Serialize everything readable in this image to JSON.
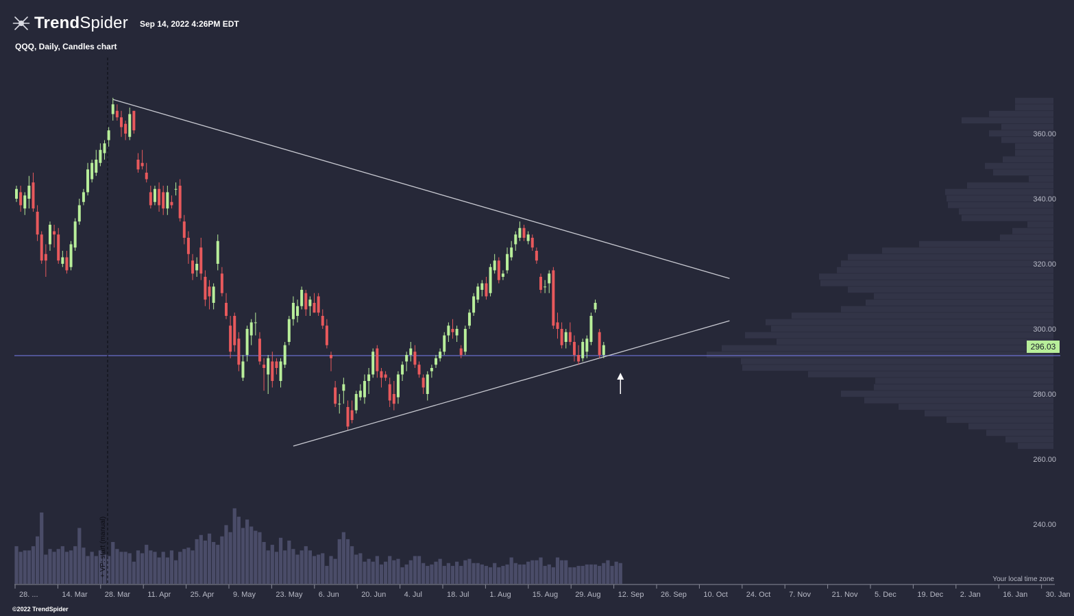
{
  "header": {
    "brand_bold": "Trend",
    "brand_light": "Spider",
    "timestamp": "Sep 14, 2022 4:26PM EDT",
    "subtitle": "QQQ, Daily, Candles chart"
  },
  "footer": {
    "copyright": "©2022 TrendSpider",
    "timezone_note": "Your local time zone"
  },
  "colors": {
    "background": "#262838",
    "up_candle": "#b8ee9a",
    "down_candle": "#e8595c",
    "volume": "#4a4c68",
    "volume_profile": "#323447",
    "trendline": "#c9cad2",
    "horizontal_line": "#7b7ef0",
    "axis_text": "#b8bac6"
  },
  "chart_data": {
    "type": "candlestick",
    "symbol": "QQQ",
    "interval": "Daily",
    "ylim": [
      228,
      376
    ],
    "y_ticks": [
      "360.00",
      "340.00",
      "320.00",
      "300.00",
      "280.00",
      "260.00",
      "240.00"
    ],
    "x_ticks": [
      "28. ...",
      "14. Mar",
      "28. Mar",
      "11. Apr",
      "25. Apr",
      "9. May",
      "23. May",
      "6. Jun",
      "20. Jun",
      "4. Jul",
      "18. Jul",
      "1. Aug",
      "15. Aug",
      "29. Aug",
      "12. Sep",
      "26. Sep",
      "10. Oct",
      "24. Oct",
      "7. Nov",
      "21. Nov",
      "5. Dec",
      "19. Dec",
      "2. Jan",
      "16. Jan",
      "30. Jan"
    ],
    "last_price": "296.03",
    "vertical_marker_label": "+ VP: start (manual)",
    "horizontal_level": 291.8,
    "candles": [
      {
        "o": 340,
        "h": 344,
        "l": 339,
        "c": 343
      },
      {
        "o": 342,
        "h": 344,
        "l": 336,
        "c": 338
      },
      {
        "o": 337,
        "h": 342,
        "l": 335,
        "c": 341
      },
      {
        "o": 340,
        "h": 347,
        "l": 337,
        "c": 344
      },
      {
        "o": 345,
        "h": 348,
        "l": 336,
        "c": 337
      },
      {
        "o": 336,
        "h": 338,
        "l": 327,
        "c": 329
      },
      {
        "o": 329,
        "h": 330,
        "l": 320,
        "c": 321
      },
      {
        "o": 323,
        "h": 326,
        "l": 316,
        "c": 321
      },
      {
        "o": 326,
        "h": 333,
        "l": 324,
        "c": 332
      },
      {
        "o": 330,
        "h": 332,
        "l": 325,
        "c": 329
      },
      {
        "o": 329,
        "h": 331,
        "l": 320,
        "c": 321
      },
      {
        "o": 320,
        "h": 324,
        "l": 319,
        "c": 322
      },
      {
        "o": 322,
        "h": 324,
        "l": 317,
        "c": 318
      },
      {
        "o": 319,
        "h": 327,
        "l": 318,
        "c": 326
      },
      {
        "o": 325,
        "h": 334,
        "l": 324,
        "c": 333
      },
      {
        "o": 333,
        "h": 340,
        "l": 332,
        "c": 338
      },
      {
        "o": 339,
        "h": 343,
        "l": 338,
        "c": 342
      },
      {
        "o": 342,
        "h": 351,
        "l": 341,
        "c": 349
      },
      {
        "o": 346,
        "h": 352,
        "l": 345,
        "c": 351
      },
      {
        "o": 348,
        "h": 355,
        "l": 347,
        "c": 352
      },
      {
        "o": 351,
        "h": 357,
        "l": 350,
        "c": 355
      },
      {
        "o": 354,
        "h": 358,
        "l": 352,
        "c": 357
      },
      {
        "o": 358,
        "h": 362,
        "l": 356,
        "c": 361
      },
      {
        "o": 366,
        "h": 371,
        "l": 364,
        "c": 369
      },
      {
        "o": 367,
        "h": 369,
        "l": 364,
        "c": 365
      },
      {
        "o": 365,
        "h": 367,
        "l": 359,
        "c": 362
      },
      {
        "o": 363,
        "h": 364,
        "l": 358,
        "c": 360
      },
      {
        "o": 359,
        "h": 368,
        "l": 358,
        "c": 366
      },
      {
        "o": 367,
        "h": 367,
        "l": 360,
        "c": 361
      },
      {
        "o": 352,
        "h": 354,
        "l": 348,
        "c": 349
      },
      {
        "o": 351,
        "h": 355,
        "l": 349,
        "c": 350
      },
      {
        "o": 348,
        "h": 351,
        "l": 345,
        "c": 346
      },
      {
        "o": 342,
        "h": 344,
        "l": 337,
        "c": 338
      },
      {
        "o": 339,
        "h": 344,
        "l": 338,
        "c": 343
      },
      {
        "o": 343,
        "h": 345,
        "l": 336,
        "c": 338
      },
      {
        "o": 342,
        "h": 344,
        "l": 335,
        "c": 337
      },
      {
        "o": 337,
        "h": 344,
        "l": 335,
        "c": 342
      },
      {
        "o": 339,
        "h": 341,
        "l": 337,
        "c": 338
      },
      {
        "o": 343,
        "h": 345,
        "l": 341,
        "c": 343
      },
      {
        "o": 344,
        "h": 346,
        "l": 333,
        "c": 334
      },
      {
        "o": 333,
        "h": 335,
        "l": 326,
        "c": 328
      },
      {
        "o": 328,
        "h": 330,
        "l": 320,
        "c": 323
      },
      {
        "o": 321,
        "h": 323,
        "l": 315,
        "c": 317
      },
      {
        "o": 318,
        "h": 322,
        "l": 316,
        "c": 320
      },
      {
        "o": 325,
        "h": 328,
        "l": 315,
        "c": 317
      },
      {
        "o": 316,
        "h": 318,
        "l": 307,
        "c": 309
      },
      {
        "o": 313,
        "h": 315,
        "l": 306,
        "c": 310
      },
      {
        "o": 308,
        "h": 314,
        "l": 306,
        "c": 313
      },
      {
        "o": 320,
        "h": 329,
        "l": 318,
        "c": 327
      },
      {
        "o": 317,
        "h": 319,
        "l": 310,
        "c": 311
      },
      {
        "o": 308,
        "h": 311,
        "l": 303,
        "c": 304
      },
      {
        "o": 301,
        "h": 304,
        "l": 291,
        "c": 293
      },
      {
        "o": 304,
        "h": 305,
        "l": 293,
        "c": 295
      },
      {
        "o": 297,
        "h": 299,
        "l": 287,
        "c": 289
      },
      {
        "o": 285,
        "h": 292,
        "l": 284,
        "c": 290
      },
      {
        "o": 292,
        "h": 301,
        "l": 290,
        "c": 300
      },
      {
        "o": 298,
        "h": 303,
        "l": 295,
        "c": 302
      },
      {
        "o": 302,
        "h": 305,
        "l": 298,
        "c": 302
      },
      {
        "o": 297,
        "h": 299,
        "l": 289,
        "c": 290
      },
      {
        "o": 289,
        "h": 291,
        "l": 281,
        "c": 288
      },
      {
        "o": 286,
        "h": 292,
        "l": 280,
        "c": 291
      },
      {
        "o": 290,
        "h": 293,
        "l": 282,
        "c": 284
      },
      {
        "o": 290,
        "h": 291,
        "l": 286,
        "c": 288
      },
      {
        "o": 284,
        "h": 291,
        "l": 282,
        "c": 290
      },
      {
        "o": 289,
        "h": 296,
        "l": 288,
        "c": 295
      },
      {
        "o": 296,
        "h": 304,
        "l": 295,
        "c": 303
      },
      {
        "o": 303,
        "h": 310,
        "l": 301,
        "c": 308
      },
      {
        "o": 304,
        "h": 309,
        "l": 302,
        "c": 307
      },
      {
        "o": 307,
        "h": 313,
        "l": 306,
        "c": 312
      },
      {
        "o": 311,
        "h": 312,
        "l": 304,
        "c": 306
      },
      {
        "o": 307,
        "h": 310,
        "l": 304,
        "c": 309
      },
      {
        "o": 308,
        "h": 311,
        "l": 305,
        "c": 305
      },
      {
        "o": 310,
        "h": 311,
        "l": 304,
        "c": 305
      },
      {
        "o": 304,
        "h": 306,
        "l": 300,
        "c": 301
      },
      {
        "o": 301,
        "h": 303,
        "l": 294,
        "c": 295
      },
      {
        "o": 292,
        "h": 293,
        "l": 287,
        "c": 291
      },
      {
        "o": 282,
        "h": 284,
        "l": 276,
        "c": 277
      },
      {
        "o": 277,
        "h": 280,
        "l": 274,
        "c": 277
      },
      {
        "o": 281,
        "h": 285,
        "l": 277,
        "c": 283
      },
      {
        "o": 276,
        "h": 278,
        "l": 269,
        "c": 270
      },
      {
        "o": 275,
        "h": 278,
        "l": 271,
        "c": 272
      },
      {
        "o": 275,
        "h": 281,
        "l": 274,
        "c": 280
      },
      {
        "o": 279,
        "h": 283,
        "l": 278,
        "c": 281
      },
      {
        "o": 279,
        "h": 286,
        "l": 277,
        "c": 284
      },
      {
        "o": 284,
        "h": 288,
        "l": 280,
        "c": 286
      },
      {
        "o": 286,
        "h": 294,
        "l": 285,
        "c": 293
      },
      {
        "o": 294,
        "h": 295,
        "l": 285,
        "c": 287
      },
      {
        "o": 287,
        "h": 288,
        "l": 282,
        "c": 285
      },
      {
        "o": 286,
        "h": 287,
        "l": 284,
        "c": 285
      },
      {
        "o": 283,
        "h": 285,
        "l": 276,
        "c": 278
      },
      {
        "o": 280,
        "h": 284,
        "l": 275,
        "c": 277
      },
      {
        "o": 279,
        "h": 287,
        "l": 277,
        "c": 286
      },
      {
        "o": 286,
        "h": 290,
        "l": 284,
        "c": 289
      },
      {
        "o": 290,
        "h": 293,
        "l": 287,
        "c": 292
      },
      {
        "o": 292,
        "h": 296,
        "l": 290,
        "c": 294
      },
      {
        "o": 293,
        "h": 295,
        "l": 288,
        "c": 289
      },
      {
        "o": 289,
        "h": 290,
        "l": 285,
        "c": 286
      },
      {
        "o": 285,
        "h": 286,
        "l": 280,
        "c": 282
      },
      {
        "o": 280,
        "h": 287,
        "l": 278,
        "c": 286
      },
      {
        "o": 287,
        "h": 289,
        "l": 285,
        "c": 288
      },
      {
        "o": 289,
        "h": 292,
        "l": 288,
        "c": 291
      },
      {
        "o": 291,
        "h": 294,
        "l": 290,
        "c": 293
      },
      {
        "o": 293,
        "h": 299,
        "l": 292,
        "c": 298
      },
      {
        "o": 298,
        "h": 302,
        "l": 296,
        "c": 301
      },
      {
        "o": 300,
        "h": 303,
        "l": 297,
        "c": 299
      },
      {
        "o": 298,
        "h": 301,
        "l": 296,
        "c": 300
      },
      {
        "o": 294,
        "h": 295,
        "l": 291,
        "c": 292
      },
      {
        "o": 293,
        "h": 301,
        "l": 292,
        "c": 300
      },
      {
        "o": 301,
        "h": 306,
        "l": 300,
        "c": 305
      },
      {
        "o": 305,
        "h": 311,
        "l": 304,
        "c": 310
      },
      {
        "o": 309,
        "h": 314,
        "l": 308,
        "c": 313
      },
      {
        "o": 312,
        "h": 315,
        "l": 310,
        "c": 314
      },
      {
        "o": 314,
        "h": 316,
        "l": 309,
        "c": 310
      },
      {
        "o": 311,
        "h": 320,
        "l": 310,
        "c": 319
      },
      {
        "o": 318,
        "h": 323,
        "l": 317,
        "c": 321
      },
      {
        "o": 321,
        "h": 322,
        "l": 314,
        "c": 315
      },
      {
        "o": 316,
        "h": 318,
        "l": 315,
        "c": 317
      },
      {
        "o": 318,
        "h": 325,
        "l": 317,
        "c": 323
      },
      {
        "o": 322,
        "h": 327,
        "l": 321,
        "c": 325
      },
      {
        "o": 326,
        "h": 330,
        "l": 324,
        "c": 329
      },
      {
        "o": 328,
        "h": 333,
        "l": 327,
        "c": 331
      },
      {
        "o": 331,
        "h": 332,
        "l": 327,
        "c": 328
      },
      {
        "o": 327,
        "h": 330,
        "l": 326,
        "c": 329
      },
      {
        "o": 328,
        "h": 329,
        "l": 324,
        "c": 325
      },
      {
        "o": 324,
        "h": 325,
        "l": 320,
        "c": 321
      },
      {
        "o": 316,
        "h": 317,
        "l": 311,
        "c": 312
      },
      {
        "o": 313,
        "h": 315,
        "l": 311,
        "c": 313
      },
      {
        "o": 314,
        "h": 318,
        "l": 311,
        "c": 317
      },
      {
        "o": 318,
        "h": 319,
        "l": 300,
        "c": 301
      },
      {
        "o": 302,
        "h": 305,
        "l": 297,
        "c": 300
      },
      {
        "o": 300,
        "h": 302,
        "l": 294,
        "c": 295
      },
      {
        "o": 296,
        "h": 300,
        "l": 294,
        "c": 299
      },
      {
        "o": 299,
        "h": 302,
        "l": 295,
        "c": 296
      },
      {
        "o": 296,
        "h": 298,
        "l": 290,
        "c": 292
      },
      {
        "o": 292,
        "h": 295,
        "l": 289,
        "c": 290
      },
      {
        "o": 291,
        "h": 297,
        "l": 290,
        "c": 296
      },
      {
        "o": 293,
        "h": 298,
        "l": 291,
        "c": 297
      },
      {
        "o": 296,
        "h": 305,
        "l": 295,
        "c": 304
      },
      {
        "o": 306,
        "h": 309,
        "l": 305,
        "c": 308
      },
      {
        "o": 299,
        "h": 300,
        "l": 291,
        "c": 292
      },
      {
        "o": 292,
        "h": 296,
        "l": 291,
        "c": 295
      }
    ],
    "volume": [
      57,
      53,
      54,
      54,
      57,
      64,
      81,
      51,
      55,
      53,
      55,
      57,
      53,
      54,
      57,
      70,
      56,
      50,
      53,
      50,
      54,
      51,
      50,
      60,
      55,
      53,
      53,
      52,
      46,
      54,
      52,
      58,
      54,
      53,
      49,
      53,
      49,
      54,
      47,
      53,
      55,
      56,
      54,
      62,
      65,
      61,
      66,
      60,
      58,
      64,
      72,
      67,
      84,
      78,
      70,
      76,
      71,
      68,
      67,
      60,
      54,
      58,
      53,
      63,
      54,
      61,
      55,
      51,
      54,
      57,
      54,
      50,
      51,
      52,
      43,
      50,
      48,
      62,
      67,
      62,
      57,
      51,
      52,
      46,
      48,
      46,
      50,
      44,
      46,
      50,
      47,
      48,
      42,
      44,
      47,
      50,
      50,
      45,
      43,
      44,
      46,
      48,
      43,
      45,
      43,
      46,
      43,
      47,
      48,
      45,
      45,
      44,
      43,
      42,
      45,
      42,
      43,
      44,
      49,
      45,
      44,
      44,
      46,
      47,
      47,
      49,
      43,
      44,
      42,
      49,
      47,
      47,
      42,
      42,
      43,
      43,
      44,
      44,
      44,
      43,
      45,
      47,
      43,
      46,
      45
    ],
    "volume_profile": [
      {
        "p": 370,
        "w": 56
      },
      {
        "p": 368,
        "w": 56
      },
      {
        "p": 366,
        "w": 94
      },
      {
        "p": 364,
        "w": 134
      },
      {
        "p": 362,
        "w": 76
      },
      {
        "p": 360,
        "w": 94
      },
      {
        "p": 358,
        "w": 76
      },
      {
        "p": 356,
        "w": 56
      },
      {
        "p": 354,
        "w": 56
      },
      {
        "p": 352,
        "w": 74
      },
      {
        "p": 350,
        "w": 100
      },
      {
        "p": 348,
        "w": 88
      },
      {
        "p": 346,
        "w": 36
      },
      {
        "p": 344,
        "w": 126
      },
      {
        "p": 342,
        "w": 158
      },
      {
        "p": 340,
        "w": 156
      },
      {
        "p": 338,
        "w": 154
      },
      {
        "p": 336,
        "w": 138
      },
      {
        "p": 334,
        "w": 134
      },
      {
        "p": 332,
        "w": 38
      },
      {
        "p": 330,
        "w": 60
      },
      {
        "p": 328,
        "w": 78
      },
      {
        "p": 326,
        "w": 196
      },
      {
        "p": 324,
        "w": 250
      },
      {
        "p": 322,
        "w": 300
      },
      {
        "p": 320,
        "w": 310
      },
      {
        "p": 318,
        "w": 316
      },
      {
        "p": 316,
        "w": 342
      },
      {
        "p": 314,
        "w": 340
      },
      {
        "p": 312,
        "w": 300
      },
      {
        "p": 310,
        "w": 262
      },
      {
        "p": 308,
        "w": 274
      },
      {
        "p": 306,
        "w": 310
      },
      {
        "p": 304,
        "w": 382
      },
      {
        "p": 302,
        "w": 420
      },
      {
        "p": 300,
        "w": 412
      },
      {
        "p": 298,
        "w": 450
      },
      {
        "p": 296,
        "w": 404
      },
      {
        "p": 294,
        "w": 484
      },
      {
        "p": 292,
        "w": 506
      },
      {
        "p": 290,
        "w": 456
      },
      {
        "p": 288,
        "w": 454
      },
      {
        "p": 286,
        "w": 358
      },
      {
        "p": 284,
        "w": 260
      },
      {
        "p": 282,
        "w": 262
      },
      {
        "p": 280,
        "w": 310
      },
      {
        "p": 278,
        "w": 276
      },
      {
        "p": 276,
        "w": 226
      },
      {
        "p": 274,
        "w": 188
      },
      {
        "p": 272,
        "w": 156
      },
      {
        "p": 270,
        "w": 124
      },
      {
        "p": 268,
        "w": 98
      },
      {
        "p": 266,
        "w": 70
      },
      {
        "p": 264,
        "w": 52
      }
    ],
    "trendlines": [
      {
        "name": "resistance",
        "from": {
          "i": 23,
          "p": 370.5
        },
        "to": {
          "i": 170,
          "p": 315.5
        }
      },
      {
        "name": "support",
        "from": {
          "i": 66,
          "p": 264
        },
        "to": {
          "i": 170,
          "p": 302.5
        }
      }
    ],
    "annotation": {
      "type": "up-arrow",
      "i": 144,
      "p": 280
    }
  }
}
